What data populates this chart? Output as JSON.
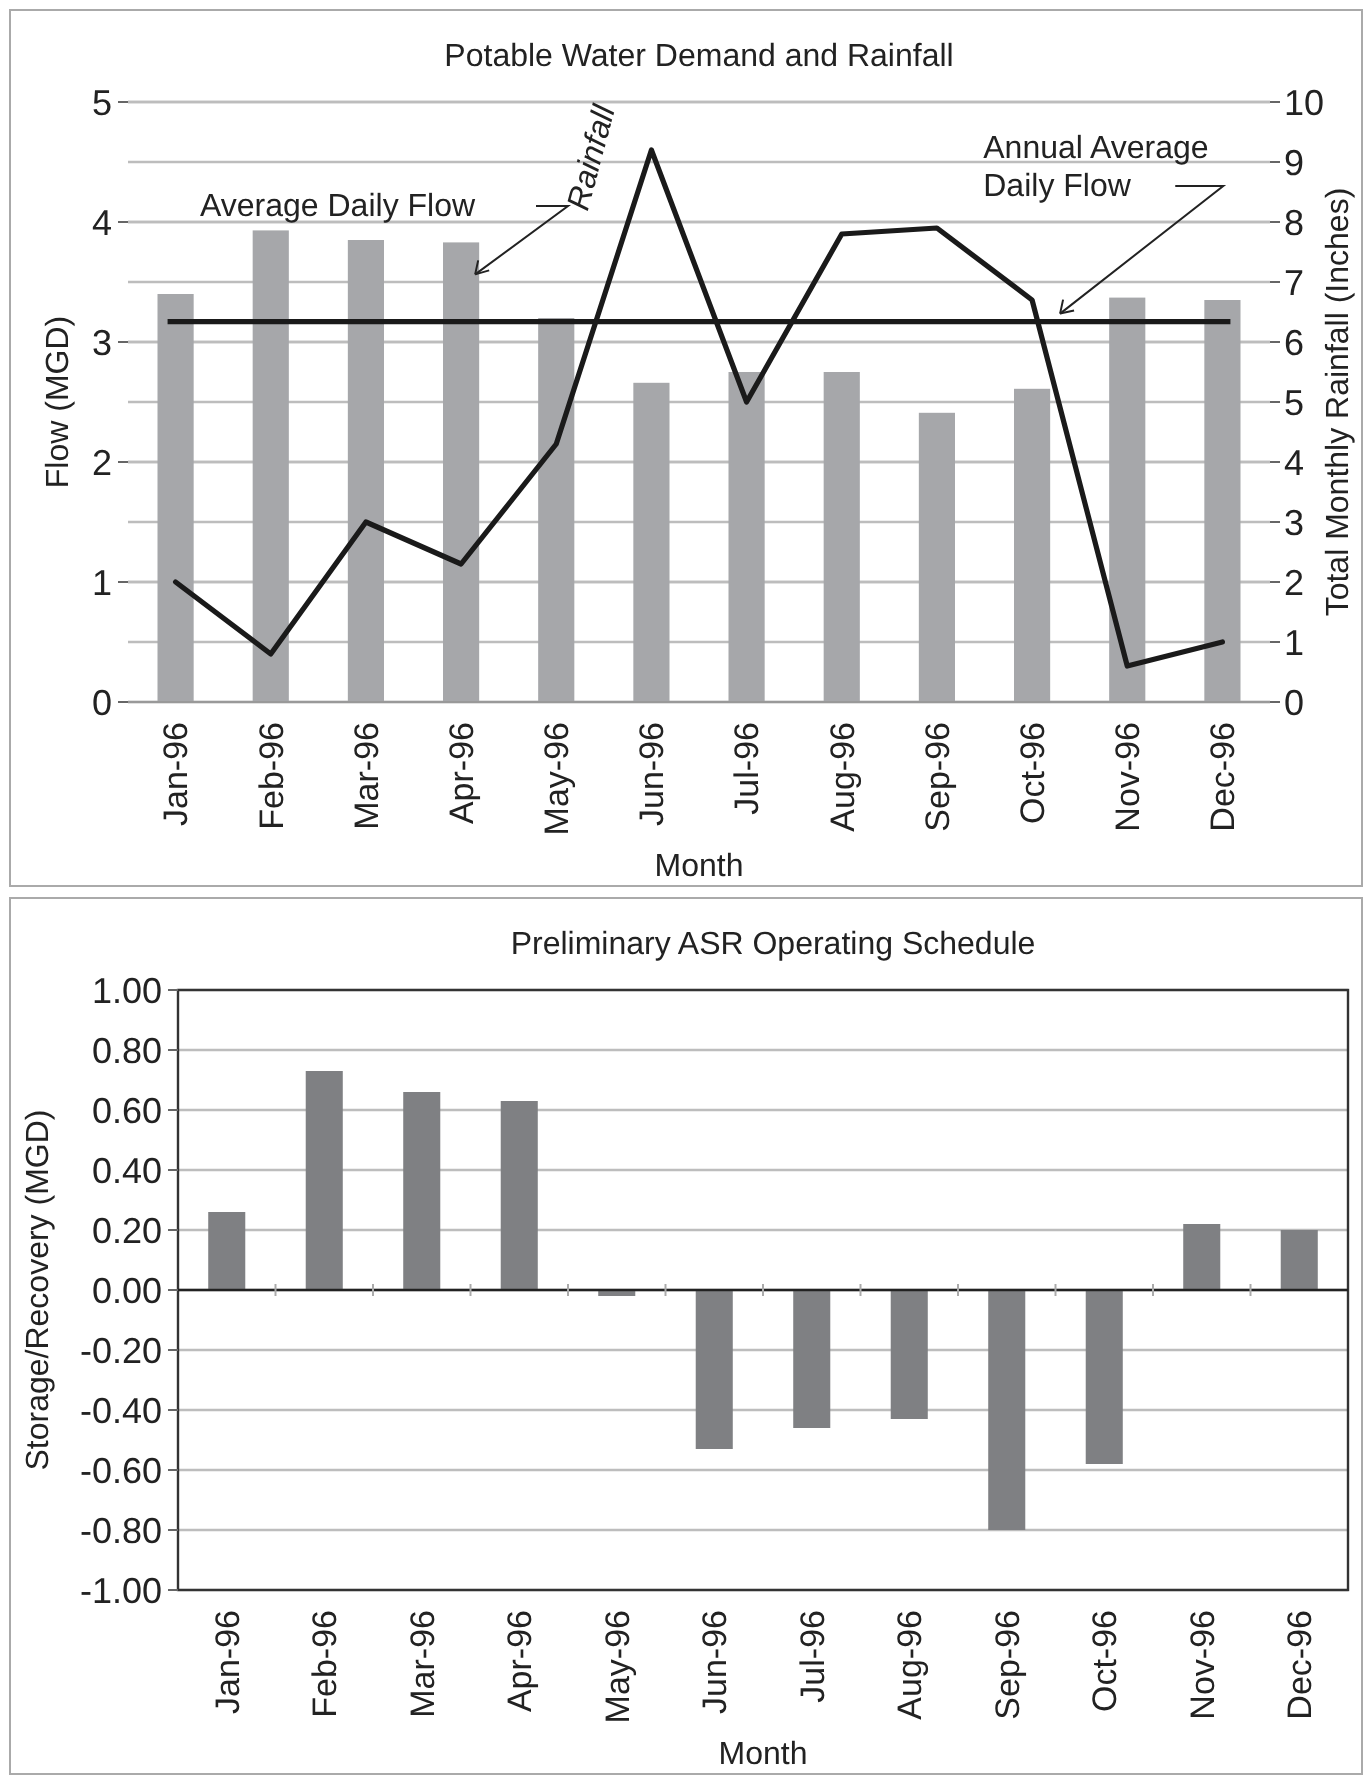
{
  "chart_data": [
    {
      "type": "bar",
      "title": "Potable Water Demand and Rainfall",
      "xlabel": "Month",
      "ylabel": "Flow (MGD)",
      "y2label": "Total Monthly Rainfall (Inches)",
      "categories": [
        "Jan-96",
        "Feb-96",
        "Mar-96",
        "Apr-96",
        "May-96",
        "Jun-96",
        "Jul-96",
        "Aug-96",
        "Sep-96",
        "Oct-96",
        "Nov-96",
        "Dec-96"
      ],
      "series": [
        {
          "name": "Average Daily Flow",
          "type": "bar",
          "color": "#a6a7aa",
          "values": [
            3.4,
            3.93,
            3.85,
            3.83,
            3.2,
            2.66,
            2.75,
            2.75,
            2.41,
            2.61,
            3.37,
            3.35
          ]
        },
        {
          "name": "Rainfall",
          "type": "line",
          "axis": "y2",
          "color": "#1a1a1a",
          "values": [
            2.0,
            0.8,
            3.0,
            2.3,
            4.3,
            9.2,
            5.0,
            7.8,
            7.9,
            6.7,
            0.6,
            1.0
          ]
        }
      ],
      "ylim": [
        0,
        5
      ],
      "yticks": [
        0,
        1,
        2,
        3,
        4,
        5
      ],
      "y2lim": [
        0,
        10
      ],
      "y2ticks": [
        0,
        1,
        2,
        3,
        4,
        5,
        6,
        7,
        8,
        9,
        10
      ],
      "ref_lines": [
        {
          "axis": "y",
          "value": 3.17,
          "label": "Annual Average Daily Flow",
          "color": "#1a1a1a"
        }
      ],
      "grid": true
    },
    {
      "type": "bar",
      "title": "Preliminary ASR Operating Schedule",
      "xlabel": "Month",
      "ylabel": "Storage/Recovery (MGD)",
      "categories": [
        "Jan-96",
        "Feb-96",
        "Mar-96",
        "Apr-96",
        "May-96",
        "Jun-96",
        "Jul-96",
        "Aug-96",
        "Sep-96",
        "Oct-96",
        "Nov-96",
        "Dec-96"
      ],
      "values": [
        0.26,
        0.73,
        0.66,
        0.63,
        -0.02,
        -0.53,
        -0.46,
        -0.43,
        -0.8,
        -0.58,
        0.22,
        0.2
      ],
      "color": "#7f8083",
      "ylim": [
        -1,
        1
      ],
      "yticks": [
        {
          "value": -1,
          "label": "-1.00"
        },
        {
          "value": -0.8,
          "label": "-0.80"
        },
        {
          "value": -0.6,
          "label": "-0.60"
        },
        {
          "value": -0.4,
          "label": "-0.40"
        },
        {
          "value": -0.2,
          "label": "-0.20"
        },
        {
          "value": 0,
          "label": "0.00"
        },
        {
          "value": 0.2,
          "label": "0.20"
        },
        {
          "value": 0.4,
          "label": "0.40"
        },
        {
          "value": 0.6,
          "label": "0.60"
        },
        {
          "value": 0.8,
          "label": "0.80"
        },
        {
          "value": 1,
          "label": "1.00"
        }
      ],
      "grid": "y"
    }
  ]
}
